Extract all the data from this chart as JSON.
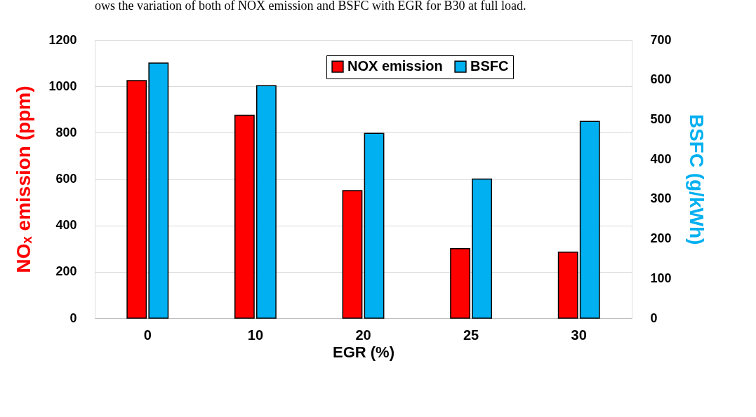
{
  "chart_data": {
    "type": "bar",
    "xlabel": "EGR (%)",
    "ylabel": "NOₓ emission (ppm)",
    "y2label": "BSFC (g/kWh)",
    "annotations": [
      "ows the variation of both of NOX emission and BSFC with EGR for B30 at full load."
    ],
    "categories": [
      "0",
      "10",
      "20",
      "25",
      "30"
    ],
    "series": [
      {
        "name": "NOX emission",
        "color": "#ff0000",
        "values": [
          1025,
          875,
          550,
          300,
          285
        ]
      },
      {
        "name": "BSFC",
        "color": "#00b0f0",
        "axis": "y2",
        "values": [
          642,
          585,
          465,
          350,
          495
        ]
      }
    ],
    "ylim": [
      0,
      1200
    ],
    "yticks": [
      0,
      200,
      400,
      600,
      800,
      1000,
      1200
    ],
    "y2lim": [
      0,
      700
    ],
    "y2ticks": [
      0,
      100,
      200,
      300,
      400,
      500,
      600,
      700
    ],
    "grid": "y",
    "legend": "top right"
  }
}
